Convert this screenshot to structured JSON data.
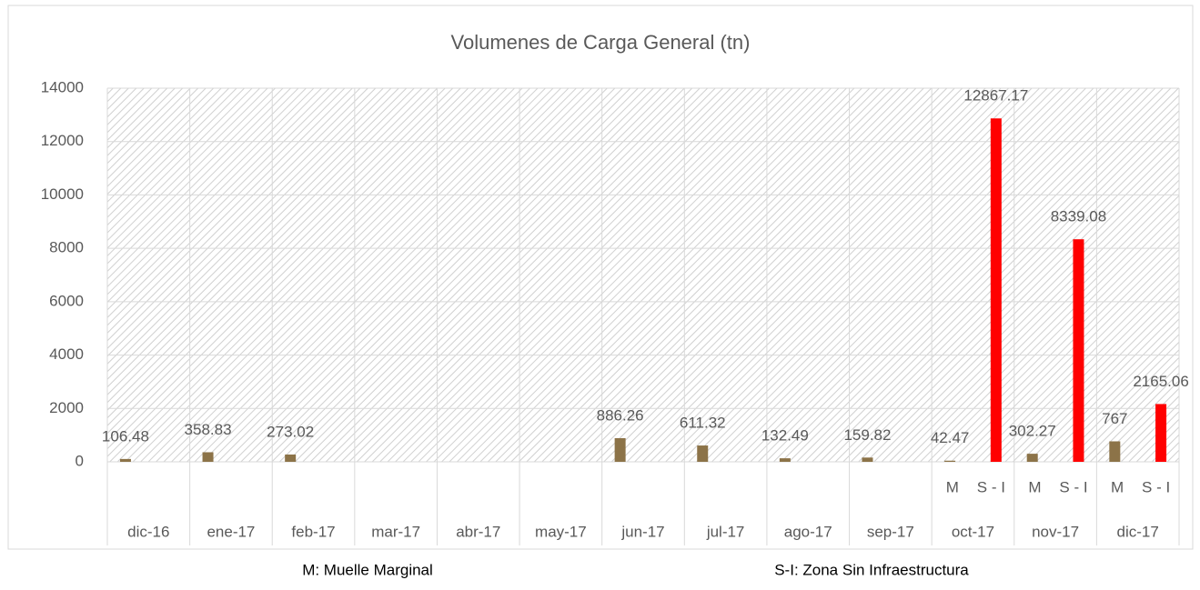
{
  "chart_data": {
    "type": "bar",
    "title": "Volumenes de Carga General (tn)",
    "ylim": [
      0,
      14000
    ],
    "yticks": [
      0,
      2000,
      4000,
      6000,
      8000,
      10000,
      12000,
      14000
    ],
    "grid": true,
    "groups": [
      {
        "label": "dic-16",
        "bars": [
          {
            "value": 106.48,
            "color": "#8c7348"
          }
        ]
      },
      {
        "label": "ene-17",
        "bars": [
          {
            "value": 358.83,
            "color": "#8c7348"
          }
        ]
      },
      {
        "label": "feb-17",
        "bars": [
          {
            "value": 273.02,
            "color": "#8c7348"
          }
        ]
      },
      {
        "label": "mar-17",
        "bars": []
      },
      {
        "label": "abr-17",
        "bars": []
      },
      {
        "label": "may-17",
        "bars": []
      },
      {
        "label": "jun-17",
        "bars": [
          {
            "value": 886.26,
            "color": "#8c7348"
          }
        ]
      },
      {
        "label": "jul-17",
        "bars": [
          {
            "value": 611.32,
            "color": "#8c7348"
          }
        ]
      },
      {
        "label": "ago-17",
        "bars": [
          {
            "value": 132.49,
            "color": "#8c7348"
          }
        ]
      },
      {
        "label": "sep-17",
        "bars": [
          {
            "value": 159.82,
            "color": "#8c7348"
          }
        ]
      },
      {
        "label": "oct-17",
        "bars": [
          {
            "sublabel": "M",
            "value": 42.47,
            "color": "#8c7348"
          },
          {
            "sublabel": "S - I",
            "value": 12867.17,
            "color": "#ff0000"
          }
        ]
      },
      {
        "label": "nov-17",
        "bars": [
          {
            "sublabel": "M",
            "value": 302.27,
            "color": "#8c7348"
          },
          {
            "sublabel": "S - I",
            "value": 8339.08,
            "color": "#ff0000"
          }
        ]
      },
      {
        "label": "dic-17",
        "bars": [
          {
            "sublabel": "M",
            "value": 767,
            "color": "#8c7348"
          },
          {
            "sublabel": "S - I",
            "value": 2165.06,
            "color": "#ff0000"
          }
        ]
      }
    ],
    "notes": [
      "M: Muelle Marginal",
      "S-I: Zona Sin Infraestructura"
    ]
  }
}
